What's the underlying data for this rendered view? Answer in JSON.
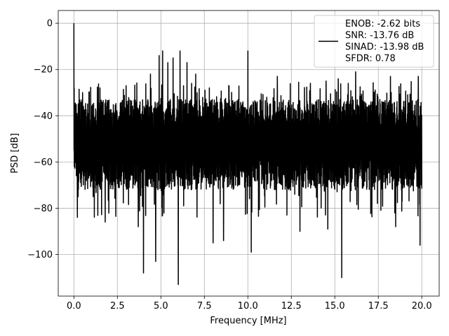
{
  "chart_data": {
    "type": "line",
    "xlabel": "Frequency [MHz]",
    "ylabel": "PSD [dB]",
    "xlim": [
      -0.9,
      21.0
    ],
    "ylim": [
      -118,
      5.5
    ],
    "xticks": [
      0.0,
      2.5,
      5.0,
      7.5,
      10.0,
      12.5,
      15.0,
      17.5,
      20.0
    ],
    "xtick_labels": [
      "0.0",
      "2.5",
      "5.0",
      "7.5",
      "10.0",
      "12.5",
      "15.0",
      "17.5",
      "20.0"
    ],
    "yticks": [
      0,
      -20,
      -40,
      -60,
      -80,
      -100
    ],
    "ytick_labels": [
      "0",
      "−20",
      "−40",
      "−60",
      "−80",
      "−100"
    ],
    "grid": true,
    "legend_placement": "top-right",
    "line_color": "#000000",
    "series": [
      {
        "name": "ENOB: -2.62 bits\nSNR: -13.76 dB\nSINAD: -13.98 dB\nSFDR: 0.78",
        "legend_lines": [
          "ENOB: -2.62 bits",
          "SNR: -13.76 dB",
          "SINAD: -13.98 dB",
          "SFDR: 0.78"
        ],
        "x_range": [
          0.0,
          20.0
        ],
        "noise_band_upper": -33,
        "noise_band_lower": -72,
        "peaks": [
          {
            "x": 0.0,
            "y": 0
          },
          {
            "x": 0.5,
            "y": -30
          },
          {
            "x": 1.5,
            "y": -28
          },
          {
            "x": 3.0,
            "y": -27
          },
          {
            "x": 4.0,
            "y": -21
          },
          {
            "x": 4.4,
            "y": -22
          },
          {
            "x": 4.9,
            "y": -14
          },
          {
            "x": 5.1,
            "y": -12
          },
          {
            "x": 5.4,
            "y": -17
          },
          {
            "x": 5.7,
            "y": -15
          },
          {
            "x": 6.1,
            "y": -12
          },
          {
            "x": 6.5,
            "y": -17
          },
          {
            "x": 7.0,
            "y": -22
          },
          {
            "x": 10.0,
            "y": -12
          },
          {
            "x": 11.7,
            "y": -23
          },
          {
            "x": 13.6,
            "y": -26
          },
          {
            "x": 14.5,
            "y": -25
          },
          {
            "x": 15.2,
            "y": -24
          },
          {
            "x": 16.2,
            "y": -21
          },
          {
            "x": 18.2,
            "y": -23
          },
          {
            "x": 19.8,
            "y": -23
          }
        ],
        "dips": [
          {
            "x": 0.2,
            "y": -84
          },
          {
            "x": 1.8,
            "y": -86
          },
          {
            "x": 3.7,
            "y": -88
          },
          {
            "x": 4.0,
            "y": -108
          },
          {
            "x": 4.7,
            "y": -103
          },
          {
            "x": 6.0,
            "y": -113
          },
          {
            "x": 8.0,
            "y": -95
          },
          {
            "x": 8.6,
            "y": -94
          },
          {
            "x": 10.2,
            "y": -99
          },
          {
            "x": 13.0,
            "y": -90
          },
          {
            "x": 14.6,
            "y": -89
          },
          {
            "x": 15.4,
            "y": -110
          },
          {
            "x": 18.5,
            "y": -88
          },
          {
            "x": 19.9,
            "y": -96
          }
        ]
      }
    ]
  }
}
